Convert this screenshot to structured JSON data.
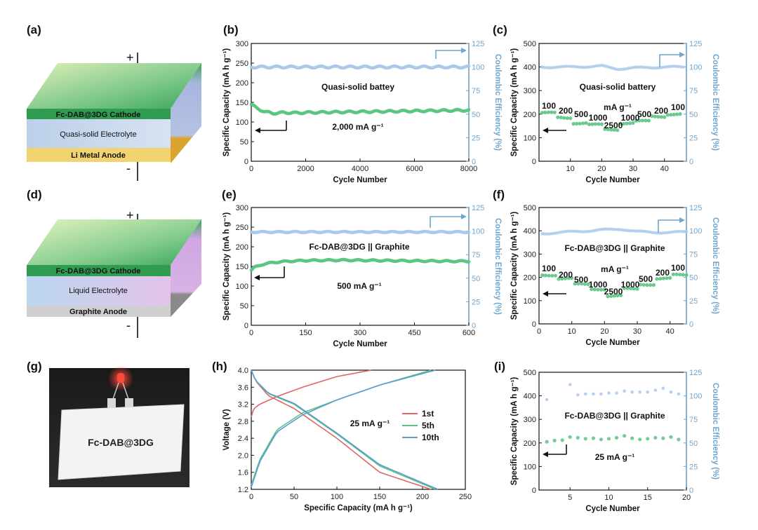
{
  "panel_labels": {
    "a": "(a)",
    "b": "(b)",
    "c": "(c)",
    "d": "(d)",
    "e": "(e)",
    "f": "(f)",
    "g": "(g)",
    "h": "(h)",
    "i": "(i)"
  },
  "diagram_a": {
    "cathode": "Fc-DAB@3DG Cathode",
    "electrolyte": "Quasi-solid Electrolyte",
    "anode": "Li Metal Anode",
    "plus": "+",
    "minus": "-",
    "colors": {
      "cathode": "#3aa65a",
      "electrolyte": "#c4d4e8",
      "anode": "#e8c25a",
      "anode_side": "#d9a530"
    }
  },
  "diagram_d": {
    "cathode": "Fc-DAB@3DG Cathode",
    "electrolyte": "Liquid Electrolyte",
    "anode": "Graphite Anode",
    "plus": "+",
    "minus": "-",
    "colors": {
      "cathode": "#3aa65a",
      "electrolyte": "#d3c7ec",
      "anode": "#cfcfcf",
      "anode_side": "#8a8a8a"
    }
  },
  "photo_g": {
    "label": "Fc-DAB@3DG"
  },
  "colors": {
    "capacity": "#5cc483",
    "ce": "#a9c9ea",
    "right_axis": "#6fa6cf",
    "first": "#e06666",
    "fifth": "#5cc483",
    "tenth": "#5b9bd5"
  },
  "chart_data": [
    {
      "id": "b",
      "type": "scatter",
      "xlabel": "Cycle Number",
      "ylabel": "Specific Capacity (mA h g⁻¹)",
      "y2label": "Coulombic Efficiency (%)",
      "xlim": [
        0,
        8000
      ],
      "ylim": [
        0,
        300
      ],
      "y2lim": [
        0,
        125
      ],
      "xticks": [
        "0",
        "2000",
        "4000",
        "6000",
        "8000"
      ],
      "yticks": [
        "0",
        "50",
        "100",
        "150",
        "200",
        "250",
        "300"
      ],
      "y2ticks": [
        "0",
        "25",
        "50",
        "75",
        "100",
        "125"
      ],
      "annotations": [
        "Quasi-solid battey",
        "2,000 mA g⁻¹"
      ],
      "series": [
        {
          "name": "capacity",
          "x": [
            0,
            200,
            500,
            800,
            1200,
            1600,
            2000,
            3000,
            4000,
            5000,
            6000,
            7000,
            8000
          ],
          "y": [
            145,
            135,
            126,
            122,
            124,
            123,
            124,
            125,
            126,
            127,
            128,
            129,
            130
          ]
        },
        {
          "name": "coulombic efficiency",
          "axis": "right",
          "x": [
            0,
            1000,
            2000,
            3000,
            4000,
            5000,
            6000,
            7000,
            8000
          ],
          "y": [
            100,
            100,
            100,
            100,
            100,
            100,
            100,
            100,
            100
          ]
        }
      ]
    },
    {
      "id": "c",
      "type": "scatter",
      "xlabel": "Cycle Number",
      "ylabel": "Specific Capacity (mA h g⁻¹)",
      "y2label": "Coulombic Efficiency (%)",
      "xlim": [
        0,
        47
      ],
      "ylim": [
        0,
        500
      ],
      "y2lim": [
        0,
        125
      ],
      "xticks": [
        "10",
        "20",
        "30",
        "40"
      ],
      "yticks": [
        "0",
        "100",
        "200",
        "300",
        "400",
        "500"
      ],
      "y2ticks": [
        "0",
        "25",
        "50",
        "75",
        "100",
        "125"
      ],
      "annotations": [
        "Quasi-solid battery",
        "mA g⁻¹"
      ],
      "rate_labels": [
        "100",
        "200",
        "500",
        "1000",
        "2500",
        "1000",
        "500",
        "200",
        "100"
      ],
      "series": [
        {
          "name": "capacity",
          "x": [
            1,
            5,
            10,
            15,
            20,
            25,
            30,
            35,
            40,
            45
          ],
          "y": [
            205,
            185,
            162,
            155,
            147,
            135,
            160,
            170,
            190,
            200
          ]
        },
        {
          "name": "coulombic efficiency",
          "axis": "right",
          "x": [
            1,
            10,
            20,
            25,
            30,
            40,
            46
          ],
          "y": [
            100,
            100,
            101,
            98,
            99,
            100,
            100
          ]
        }
      ]
    },
    {
      "id": "e",
      "type": "scatter",
      "xlabel": "Cycle Number",
      "ylabel": "Specific Capacity (mA h g⁻¹)",
      "y2label": "Coulombic Efficiency (%)",
      "xlim": [
        0,
        600
      ],
      "ylim": [
        0,
        300
      ],
      "y2lim": [
        0,
        125
      ],
      "xticks": [
        "0",
        "150",
        "300",
        "450",
        "600"
      ],
      "yticks": [
        "0",
        "50",
        "100",
        "150",
        "200",
        "250",
        "300"
      ],
      "y2ticks": [
        "0",
        "25",
        "50",
        "75",
        "100",
        "125"
      ],
      "annotations": [
        "Fc-DAB@3DG || Graphite",
        "500 mA g⁻¹"
      ],
      "series": [
        {
          "name": "capacity",
          "x": [
            0,
            10,
            30,
            60,
            100,
            150,
            250,
            350,
            450,
            600
          ],
          "y": [
            140,
            148,
            155,
            160,
            163,
            165,
            166,
            165,
            164,
            163
          ]
        },
        {
          "name": "coulombic efficiency",
          "axis": "right",
          "x": [
            0,
            100,
            200,
            300,
            400,
            500,
            600
          ],
          "y": [
            99,
            99,
            99,
            99,
            99,
            99,
            99
          ]
        }
      ]
    },
    {
      "id": "f",
      "type": "scatter",
      "xlabel": "Cycle Number",
      "ylabel": "Specific Capacity (mA h g⁻¹)",
      "y2label": "Coulombic Efficiency (%)",
      "xlim": [
        0,
        45
      ],
      "ylim": [
        0,
        500
      ],
      "y2lim": [
        0,
        125
      ],
      "xticks": [
        "0",
        "10",
        "20",
        "30",
        "40"
      ],
      "yticks": [
        "0",
        "100",
        "200",
        "300",
        "400",
        "500"
      ],
      "y2ticks": [
        "0",
        "25",
        "50",
        "75",
        "100",
        "125"
      ],
      "annotations": [
        "Fc-DAB@3DG || Graphite",
        "mA g⁻¹"
      ],
      "rate_labels": [
        "100",
        "200",
        "500",
        "1000",
        "2500",
        "1000",
        "500",
        "200",
        "100"
      ],
      "series": [
        {
          "name": "capacity",
          "x": [
            1,
            5,
            10,
            15,
            20,
            25,
            30,
            35,
            40,
            45
          ],
          "y": [
            210,
            195,
            170,
            155,
            140,
            120,
            150,
            170,
            195,
            210
          ]
        },
        {
          "name": "coulombic efficiency",
          "axis": "right",
          "x": [
            1,
            10,
            20,
            25,
            30,
            40,
            45
          ],
          "y": [
            97,
            99,
            101,
            102,
            99,
            98,
            99
          ]
        }
      ]
    },
    {
      "id": "h",
      "type": "line",
      "xlabel": "Specific Capacity (mA h g⁻¹)",
      "ylabel": "Voltage (V)",
      "xlim": [
        0,
        250
      ],
      "ylim": [
        1.2,
        4.0
      ],
      "xticks": [
        "0",
        "50",
        "100",
        "150",
        "200",
        "250"
      ],
      "yticks": [
        "1.2",
        "1.6",
        "2.0",
        "2.4",
        "2.8",
        "3.2",
        "3.6",
        "4.0"
      ],
      "annotations": [
        "25 mA g⁻¹"
      ],
      "legend": [
        "1st",
        "5th",
        "10th"
      ],
      "series": [
        {
          "name": "1st charge",
          "x": [
            0,
            3,
            10,
            30,
            60,
            100,
            140
          ],
          "y": [
            2.9,
            3.1,
            3.2,
            3.38,
            3.6,
            3.85,
            4.0
          ]
        },
        {
          "name": "1st discharge",
          "x": [
            0,
            5,
            20,
            50,
            100,
            150,
            210
          ],
          "y": [
            4.0,
            3.75,
            3.4,
            3.1,
            2.4,
            1.6,
            1.2
          ]
        },
        {
          "name": "5th charge",
          "x": [
            0,
            10,
            30,
            60,
            100,
            150,
            210
          ],
          "y": [
            1.3,
            1.9,
            2.6,
            3.0,
            3.3,
            3.65,
            4.0
          ]
        },
        {
          "name": "5th discharge",
          "x": [
            0,
            5,
            20,
            50,
            100,
            150,
            215
          ],
          "y": [
            4.0,
            3.75,
            3.45,
            3.2,
            2.5,
            1.75,
            1.2
          ]
        },
        {
          "name": "10th charge",
          "x": [
            0,
            10,
            30,
            60,
            100,
            150,
            215
          ],
          "y": [
            1.25,
            1.85,
            2.55,
            2.95,
            3.3,
            3.65,
            4.0
          ]
        },
        {
          "name": "10th discharge",
          "x": [
            0,
            5,
            20,
            50,
            100,
            150,
            218
          ],
          "y": [
            4.0,
            3.76,
            3.46,
            3.22,
            2.52,
            1.78,
            1.2
          ]
        }
      ]
    },
    {
      "id": "i",
      "type": "scatter",
      "xlabel": "Cycle Number",
      "ylabel": "Specific Capacity (mA h g⁻¹)",
      "y2label": "Coulombic Efficiency (%)",
      "xlim": [
        1,
        20
      ],
      "ylim": [
        0,
        500
      ],
      "y2lim": [
        0,
        125
      ],
      "xticks": [
        "5",
        "10",
        "15",
        "20"
      ],
      "yticks": [
        "0",
        "100",
        "200",
        "300",
        "400",
        "500"
      ],
      "y2ticks": [
        "0",
        "25",
        "50",
        "75",
        "100",
        "125"
      ],
      "annotations": [
        "Fc-DAB@3DG || Graphite",
        "25 mA g⁻¹"
      ],
      "series": [
        {
          "name": "capacity",
          "x": [
            2,
            3,
            4,
            5,
            6,
            7,
            8,
            9,
            10,
            11,
            12,
            13,
            14,
            15,
            16,
            17,
            18,
            19
          ],
          "y": [
            205,
            210,
            212,
            225,
            222,
            218,
            220,
            215,
            218,
            222,
            230,
            220,
            215,
            218,
            222,
            220,
            225,
            215
          ]
        },
        {
          "name": "coulombic efficiency",
          "axis": "right",
          "x": [
            2,
            5,
            6,
            7,
            8,
            9,
            10,
            11,
            12,
            13,
            14,
            15,
            16,
            17,
            18,
            19
          ],
          "y": [
            96,
            112,
            101,
            102,
            102,
            102,
            103,
            103,
            105,
            104,
            104,
            104,
            106,
            108,
            104,
            102
          ]
        }
      ]
    }
  ]
}
